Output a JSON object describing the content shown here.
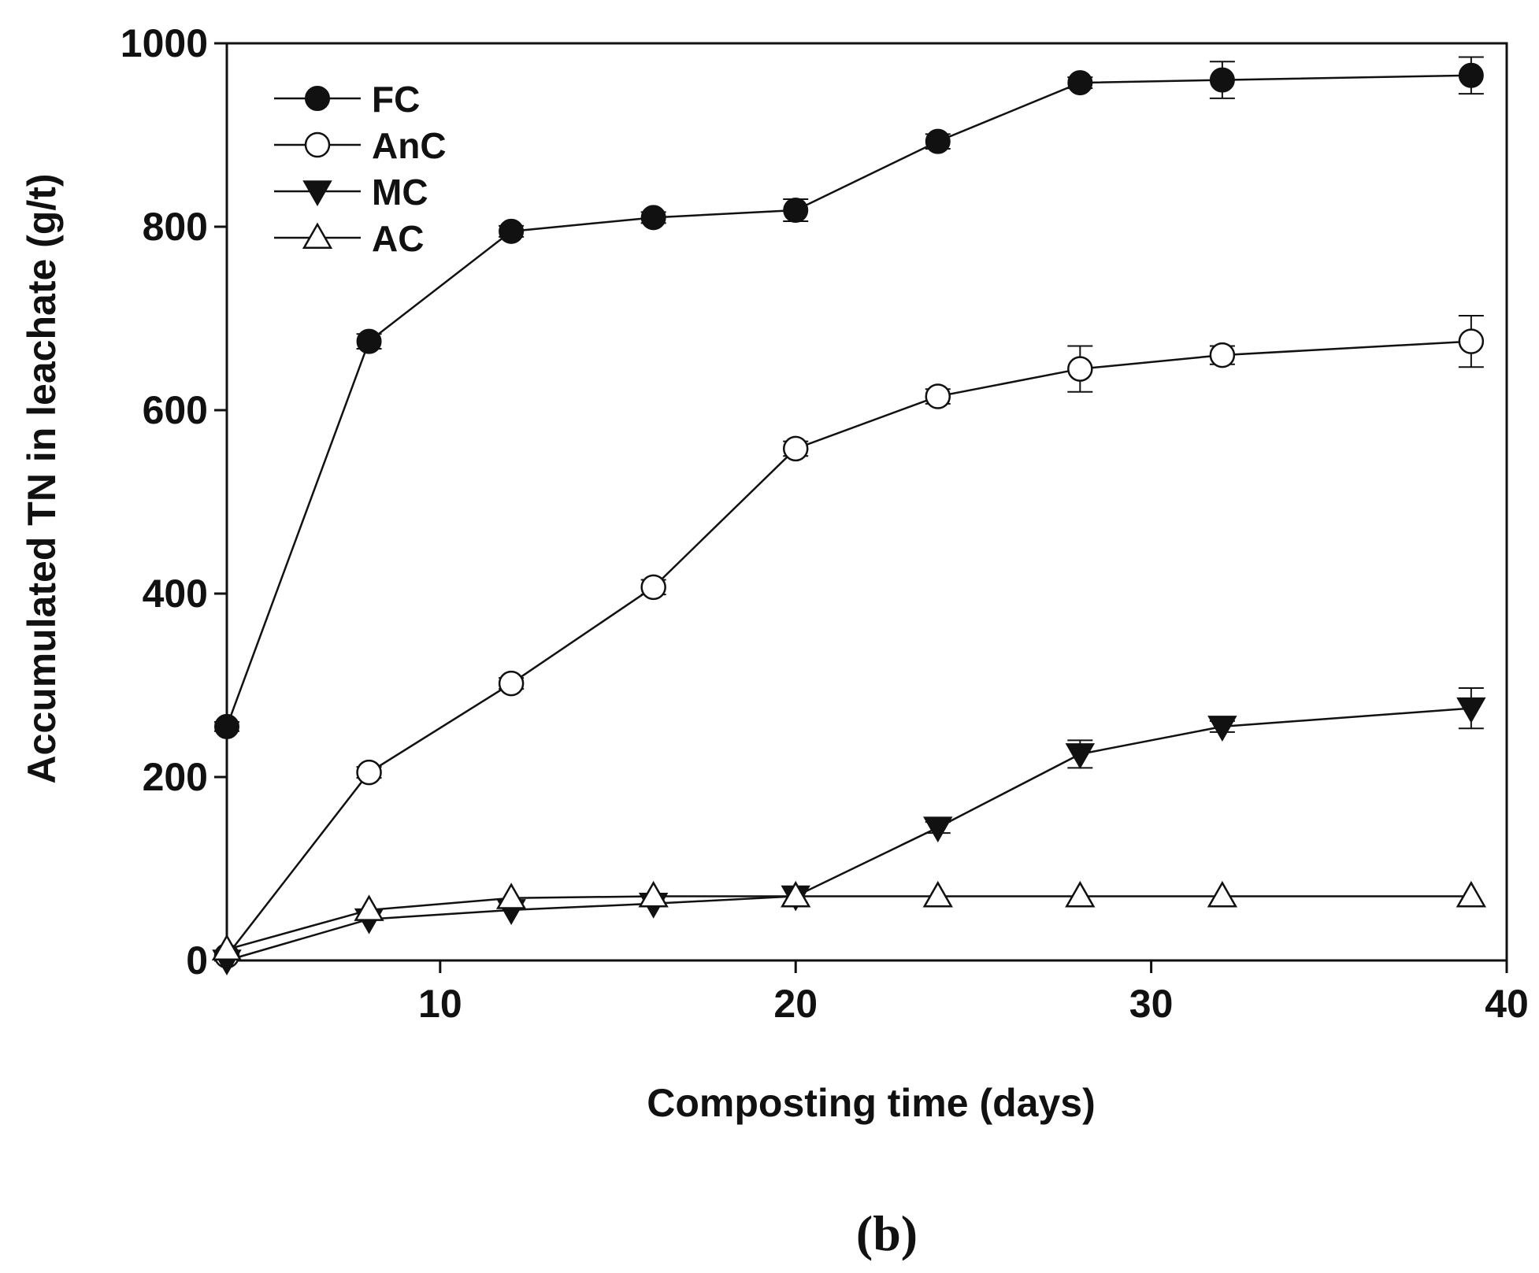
{
  "chart_data": {
    "type": "line",
    "xlabel": "Composting time (days)",
    "ylabel": "Accumulated TN in leachate (g/t)",
    "xlim": [
      4,
      40
    ],
    "ylim": [
      0,
      1000
    ],
    "xticks": [
      10,
      20,
      30,
      40
    ],
    "yticks": [
      0,
      200,
      400,
      600,
      800,
      1000
    ],
    "x_tick_labels": [
      "10",
      "20",
      "30",
      "40"
    ],
    "y_tick_labels": [
      "0",
      "200",
      "400",
      "600",
      "800",
      "1000"
    ],
    "grid": false,
    "legend_position": "top-left",
    "panel_label": "(b)",
    "x": [
      4,
      8,
      12,
      16,
      20,
      24,
      28,
      32,
      39
    ],
    "series": [
      {
        "name": "FC",
        "marker": "filled-circle",
        "values": [
          255,
          675,
          795,
          810,
          818,
          893,
          957,
          960,
          965
        ],
        "errors": [
          5,
          8,
          6,
          6,
          12,
          8,
          6,
          20,
          20
        ]
      },
      {
        "name": "AnC",
        "marker": "open-circle",
        "values": [
          5,
          205,
          302,
          407,
          558,
          615,
          645,
          660,
          675
        ],
        "errors": [
          3,
          6,
          6,
          8,
          8,
          8,
          25,
          10,
          28
        ]
      },
      {
        "name": "MC",
        "marker": "filled-triangle-down",
        "values": [
          0,
          45,
          55,
          62,
          70,
          145,
          225,
          255,
          275
        ],
        "errors": [
          2,
          3,
          3,
          3,
          3,
          6,
          15,
          6,
          22
        ]
      },
      {
        "name": "AC",
        "marker": "open-triangle-up",
        "values": [
          12,
          55,
          68,
          70,
          70,
          70,
          70,
          70,
          70
        ],
        "errors": [
          2,
          3,
          3,
          3,
          3,
          2,
          2,
          2,
          2
        ]
      }
    ]
  }
}
